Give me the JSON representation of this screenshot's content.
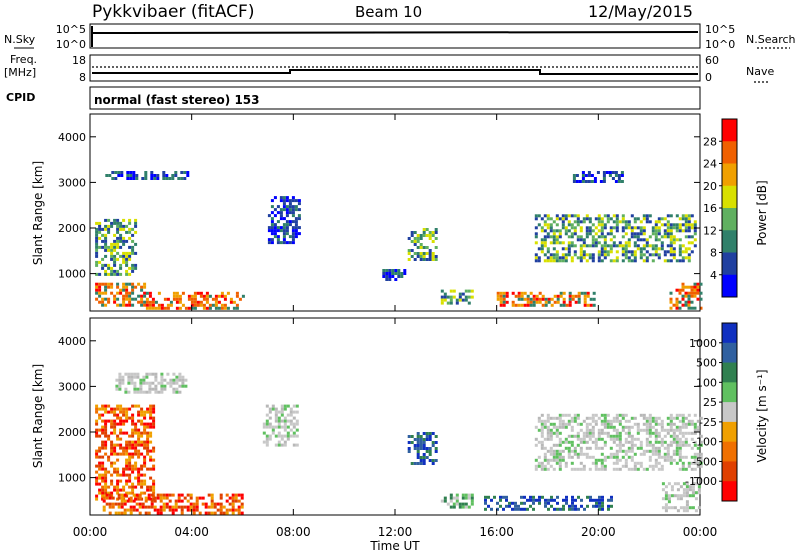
{
  "header": {
    "title": "Pykkvibaer (fitACF)",
    "beam": "Beam 10",
    "date": "12/May/2015"
  },
  "top_panels": {
    "nsky_label": "N.Sky",
    "nsky_ticks": [
      "10^5",
      "10^0"
    ],
    "nsearch_label": "N.Search",
    "nsearch_ticks": [
      "10^5",
      "10^0"
    ],
    "freq_label_1": "Freq.",
    "freq_label_2": "[MHz]",
    "freq_ticks": [
      "18",
      "8"
    ],
    "nave_label": "Nave",
    "nave_ticks": [
      "60",
      "0"
    ],
    "cpid_label": "CPID",
    "cpid_text": "normal (fast stereo) 153"
  },
  "chart_data": [
    {
      "type": "heatmap",
      "name": "power",
      "ylabel": "Slant Range [km]",
      "yticks": [
        "4000",
        "3000",
        "2000",
        "1000"
      ],
      "ylim": [
        180,
        4500
      ],
      "colorbar": {
        "label": "Power [dB]",
        "ticks": [
          "28",
          "24",
          "20",
          "16",
          "12",
          "8",
          "4"
        ],
        "colors": [
          "#ff0000",
          "#f06000",
          "#f0a000",
          "#d8e000",
          "#60b060",
          "#30806a",
          "#2040a0",
          "#0000ff"
        ]
      },
      "regions": [
        {
          "t": [
            0.2,
            2.2
          ],
          "r": [
            300,
            800
          ],
          "level": "high"
        },
        {
          "t": [
            2.2,
            6.0
          ],
          "r": [
            250,
            600
          ],
          "level": "high"
        },
        {
          "t": [
            0.2,
            1.8
          ],
          "r": [
            1000,
            2200
          ],
          "level": "mid"
        },
        {
          "t": [
            0.6,
            3.8
          ],
          "r": [
            3100,
            3250
          ],
          "level": "low"
        },
        {
          "t": [
            7.0,
            8.2
          ],
          "r": [
            1700,
            2700
          ],
          "level": "low"
        },
        {
          "t": [
            11.5,
            12.4
          ],
          "r": [
            900,
            1100
          ],
          "level": "low"
        },
        {
          "t": [
            12.5,
            13.6
          ],
          "r": [
            1300,
            2000
          ],
          "level": "mid"
        },
        {
          "t": [
            13.8,
            15.0
          ],
          "r": [
            350,
            650
          ],
          "level": "mid"
        },
        {
          "t": [
            16.0,
            19.8
          ],
          "r": [
            300,
            600
          ],
          "level": "high"
        },
        {
          "t": [
            17.5,
            23.8
          ],
          "r": [
            1300,
            2300
          ],
          "level": "mid"
        },
        {
          "t": [
            19.0,
            21.0
          ],
          "r": [
            3050,
            3250
          ],
          "level": "low"
        },
        {
          "t": [
            22.8,
            24.0
          ],
          "r": [
            250,
            800
          ],
          "level": "high"
        }
      ]
    },
    {
      "type": "heatmap",
      "name": "velocity",
      "xlabel": "Time UT",
      "xticks": [
        "00:00",
        "04:00",
        "08:00",
        "12:00",
        "16:00",
        "20:00",
        "00:00"
      ],
      "ylabel": "Slant Range [km]",
      "yticks": [
        "4000",
        "3000",
        "2000",
        "1000"
      ],
      "ylim": [
        180,
        4500
      ],
      "colorbar": {
        "label": "Velocity [m s⁻¹]",
        "ticks": [
          "1000",
          "500",
          "100",
          "25",
          "-25",
          "-100",
          "-500",
          "-1000"
        ],
        "colors": [
          "#1030c0",
          "#3060a0",
          "#308050",
          "#60c060",
          "#c8c8c8",
          "#f0a000",
          "#f07000",
          "#e04000",
          "#ff0000"
        ]
      },
      "regions": [
        {
          "t": [
            0.2,
            2.5
          ],
          "r": [
            500,
            2600
          ],
          "level": "toward"
        },
        {
          "t": [
            0.5,
            6.0
          ],
          "r": [
            250,
            650
          ],
          "level": "toward"
        },
        {
          "t": [
            1.0,
            3.8
          ],
          "r": [
            2900,
            3300
          ],
          "level": "ground"
        },
        {
          "t": [
            6.8,
            8.2
          ],
          "r": [
            1700,
            2600
          ],
          "level": "ground"
        },
        {
          "t": [
            12.5,
            13.6
          ],
          "r": [
            1300,
            2000
          ],
          "level": "away"
        },
        {
          "t": [
            13.8,
            15.0
          ],
          "r": [
            350,
            650
          ],
          "level": "slow"
        },
        {
          "t": [
            15.5,
            20.5
          ],
          "r": [
            300,
            600
          ],
          "level": "away"
        },
        {
          "t": [
            17.5,
            24.0
          ],
          "r": [
            1200,
            2400
          ],
          "level": "ground"
        },
        {
          "t": [
            22.5,
            24.0
          ],
          "r": [
            250,
            900
          ],
          "level": "ground"
        }
      ]
    }
  ]
}
